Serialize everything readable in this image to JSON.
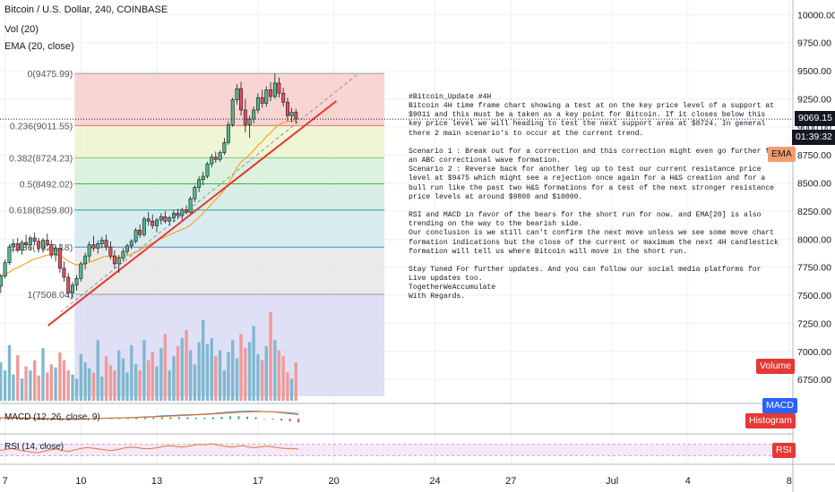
{
  "header": {
    "symbol": "Bitcoin / U.S. Dollar, 240, COINBASE",
    "vol": "Vol (20)",
    "ema": "EMA (20, close)"
  },
  "price_axis": {
    "ticks": [
      "10000.00",
      "9750.00",
      "9500.00",
      "9250.00",
      "9000.00",
      "8750.00",
      "8500.00",
      "8250.00",
      "8000.00",
      "7750.00",
      "7500.00",
      "7250.00",
      "7000.00",
      "6750.00"
    ],
    "current_price": "9069.15",
    "countdown": "01:39:32",
    "ema_tag": "EMA",
    "volume_tag": "Volume"
  },
  "macd_pane": {
    "label": "MACD (12, 26, close, 9)",
    "tag": "MACD",
    "histogram_tag": "Histogram",
    "zero": "0.00"
  },
  "rsi_pane": {
    "label": "RSI (14, close)",
    "tag": "RSI"
  },
  "time_axis": {
    "labels": [
      "7",
      "10",
      "13",
      "17",
      "20",
      "24",
      "27",
      "Jul",
      "4",
      "8"
    ]
  },
  "fibonacci": {
    "levels": [
      {
        "label": "0(9475.99)",
        "price": 9475.99,
        "fill": "#f4c7c3"
      },
      {
        "label": "0.236(9011.55)",
        "price": 9011.55,
        "fill": "#e9f3c8"
      },
      {
        "label": "0.382(8724.23)",
        "price": 8724.23,
        "fill": "#d1ecd4"
      },
      {
        "label": "0.5(8492.02)",
        "price": 8492.02,
        "fill": "#cce9de"
      },
      {
        "label": "0.618(8259.80)",
        "price": 8259.8,
        "fill": "#cce6ee"
      },
      {
        "label": "0.786(7929.18)",
        "price": 7929.18,
        "fill": "#e3e3e3"
      },
      {
        "label": "1(7508.04)",
        "price": 7508.04,
        "fill": "#d4d5f3"
      }
    ]
  },
  "note": {
    "text": "#Bitcoin_Update #4H\nBitcoin 4H time frame chart showing a test at on the key price level of a support at\n$9011 and this must be a taken as a key point for Bitcoin. If it closes below this\nkey price level we will heading to test the next support area at $8724. In general\nthere 2 main scenario's to occur at the current trend.\n\nScenario 1 : Break out for a correction and this correction might even go further for\nan ABC correctional wave formation.\nScenario 2 : Reverse back for another leg up to test our current resistance price\nlevel at $9475 which might see a rejection once again for a H&S creation and for a\nbull run like the past two H&S formations for a test of the next stronger resistance\nprice levels at around $9800 and $10000.\n\nRSI and MACD in favor of the bears for the short run for now. and EMA[20] is also\ntrending on the way to the bearish side.\nOur conclusion is we still can't confirm the next move unless we see some move chart\nformation indications but the close of the current or maximum the next 4H candlestick\nformation will tell us where Bitcoin will move in the short run.\n\nStay Tuned For further updates. And you can follow our social media platforms for\nLive updates too.\nTogetherWeAccumulate\nWith Regards."
  },
  "colors": {
    "up": "#53b987",
    "down": "#eb4d5c",
    "trendline": "#e53935",
    "ema": "#f5a623",
    "macd": "#2196f3",
    "signal": "#ff6d00",
    "rsi": "#e8743b",
    "rsi_band": "#e1bee7",
    "vol_up": "#7fb8cf",
    "vol_down": "#ef9a9a"
  },
  "chart_data": {
    "type": "candlestick",
    "title": "Bitcoin / U.S. Dollar, 240, COINBASE",
    "ylim": [
      6600,
      10130
    ],
    "x_start_day": 6.8,
    "x_end_day": 38.15,
    "candles": [
      {
        "t": 6.83,
        "o": 7580,
        "h": 7690,
        "l": 7520,
        "c": 7670
      },
      {
        "t": 7.0,
        "o": 7670,
        "h": 7820,
        "l": 7650,
        "c": 7790
      },
      {
        "t": 7.17,
        "o": 7790,
        "h": 7950,
        "l": 7770,
        "c": 7930
      },
      {
        "t": 7.33,
        "o": 7930,
        "h": 8000,
        "l": 7880,
        "c": 7960
      },
      {
        "t": 7.5,
        "o": 7960,
        "h": 8010,
        "l": 7880,
        "c": 7900
      },
      {
        "t": 7.67,
        "o": 7900,
        "h": 7990,
        "l": 7860,
        "c": 7970
      },
      {
        "t": 7.83,
        "o": 7970,
        "h": 8040,
        "l": 7920,
        "c": 7950
      },
      {
        "t": 8.0,
        "o": 7950,
        "h": 8030,
        "l": 7900,
        "c": 8010
      },
      {
        "t": 8.17,
        "o": 8010,
        "h": 8060,
        "l": 7950,
        "c": 7980
      },
      {
        "t": 8.33,
        "o": 7980,
        "h": 8010,
        "l": 7880,
        "c": 7920
      },
      {
        "t": 8.5,
        "o": 7920,
        "h": 8010,
        "l": 7880,
        "c": 7990
      },
      {
        "t": 8.67,
        "o": 7990,
        "h": 8050,
        "l": 7930,
        "c": 7950
      },
      {
        "t": 8.83,
        "o": 7950,
        "h": 7990,
        "l": 7830,
        "c": 7860
      },
      {
        "t": 9.0,
        "o": 7860,
        "h": 7950,
        "l": 7800,
        "c": 7920
      },
      {
        "t": 9.17,
        "o": 7920,
        "h": 7960,
        "l": 7700,
        "c": 7740
      },
      {
        "t": 9.33,
        "o": 7740,
        "h": 7800,
        "l": 7620,
        "c": 7660
      },
      {
        "t": 9.5,
        "o": 7660,
        "h": 7700,
        "l": 7480,
        "c": 7520
      },
      {
        "t": 9.67,
        "o": 7520,
        "h": 7620,
        "l": 7470,
        "c": 7590
      },
      {
        "t": 9.83,
        "o": 7590,
        "h": 7680,
        "l": 7540,
        "c": 7650
      },
      {
        "t": 10.0,
        "o": 7650,
        "h": 7800,
        "l": 7620,
        "c": 7780
      },
      {
        "t": 10.17,
        "o": 7780,
        "h": 7880,
        "l": 7730,
        "c": 7850
      },
      {
        "t": 10.33,
        "o": 7850,
        "h": 7980,
        "l": 7800,
        "c": 7950
      },
      {
        "t": 10.5,
        "o": 7950,
        "h": 8030,
        "l": 7890,
        "c": 7920
      },
      {
        "t": 10.67,
        "o": 7920,
        "h": 7990,
        "l": 7870,
        "c": 7960
      },
      {
        "t": 10.83,
        "o": 7960,
        "h": 8020,
        "l": 7920,
        "c": 7990
      },
      {
        "t": 11.0,
        "o": 7990,
        "h": 8040,
        "l": 7900,
        "c": 7930
      },
      {
        "t": 11.17,
        "o": 7930,
        "h": 7980,
        "l": 7820,
        "c": 7850
      },
      {
        "t": 11.33,
        "o": 7850,
        "h": 7900,
        "l": 7740,
        "c": 7780
      },
      {
        "t": 11.5,
        "o": 7780,
        "h": 7860,
        "l": 7700,
        "c": 7830
      },
      {
        "t": 11.67,
        "o": 7830,
        "h": 7920,
        "l": 7800,
        "c": 7890
      },
      {
        "t": 11.83,
        "o": 7890,
        "h": 7960,
        "l": 7860,
        "c": 7940
      },
      {
        "t": 12.0,
        "o": 7940,
        "h": 8000,
        "l": 7910,
        "c": 7980
      },
      {
        "t": 12.17,
        "o": 7980,
        "h": 8100,
        "l": 7960,
        "c": 8080
      },
      {
        "t": 12.33,
        "o": 8080,
        "h": 8130,
        "l": 8010,
        "c": 8040
      },
      {
        "t": 12.5,
        "o": 8040,
        "h": 8200,
        "l": 8020,
        "c": 8180
      },
      {
        "t": 12.67,
        "o": 8180,
        "h": 8240,
        "l": 8120,
        "c": 8160
      },
      {
        "t": 12.83,
        "o": 8160,
        "h": 8220,
        "l": 8090,
        "c": 8120
      },
      {
        "t": 13.0,
        "o": 8120,
        "h": 8190,
        "l": 8060,
        "c": 8170
      },
      {
        "t": 13.17,
        "o": 8170,
        "h": 8230,
        "l": 8130,
        "c": 8200
      },
      {
        "t": 13.33,
        "o": 8200,
        "h": 8250,
        "l": 8140,
        "c": 8160
      },
      {
        "t": 13.5,
        "o": 8160,
        "h": 8210,
        "l": 8120,
        "c": 8190
      },
      {
        "t": 13.67,
        "o": 8190,
        "h": 8260,
        "l": 8150,
        "c": 8230
      },
      {
        "t": 13.83,
        "o": 8230,
        "h": 8270,
        "l": 8180,
        "c": 8210
      },
      {
        "t": 14.0,
        "o": 8210,
        "h": 8280,
        "l": 8170,
        "c": 8260
      },
      {
        "t": 14.17,
        "o": 8260,
        "h": 8300,
        "l": 8220,
        "c": 8240
      },
      {
        "t": 14.33,
        "o": 8240,
        "h": 8380,
        "l": 8230,
        "c": 8360
      },
      {
        "t": 14.5,
        "o": 8360,
        "h": 8480,
        "l": 8330,
        "c": 8460
      },
      {
        "t": 14.67,
        "o": 8460,
        "h": 8560,
        "l": 8420,
        "c": 8530
      },
      {
        "t": 14.83,
        "o": 8530,
        "h": 8600,
        "l": 8480,
        "c": 8560
      },
      {
        "t": 15.0,
        "o": 8560,
        "h": 8690,
        "l": 8540,
        "c": 8670
      },
      {
        "t": 15.17,
        "o": 8670,
        "h": 8760,
        "l": 8640,
        "c": 8730
      },
      {
        "t": 15.33,
        "o": 8730,
        "h": 8780,
        "l": 8680,
        "c": 8710
      },
      {
        "t": 15.5,
        "o": 8710,
        "h": 8790,
        "l": 8690,
        "c": 8770
      },
      {
        "t": 15.67,
        "o": 8770,
        "h": 8900,
        "l": 8750,
        "c": 8860
      },
      {
        "t": 15.83,
        "o": 8860,
        "h": 9050,
        "l": 8840,
        "c": 9020
      },
      {
        "t": 16.0,
        "o": 9020,
        "h": 9260,
        "l": 9000,
        "c": 9240
      },
      {
        "t": 16.17,
        "o": 9240,
        "h": 9380,
        "l": 9200,
        "c": 9340
      },
      {
        "t": 16.33,
        "o": 9340,
        "h": 9400,
        "l": 9100,
        "c": 9150
      },
      {
        "t": 16.5,
        "o": 9150,
        "h": 9250,
        "l": 8950,
        "c": 9020
      },
      {
        "t": 16.67,
        "o": 9020,
        "h": 9100,
        "l": 8900,
        "c": 9070
      },
      {
        "t": 16.83,
        "o": 9070,
        "h": 9180,
        "l": 9030,
        "c": 9150
      },
      {
        "t": 17.0,
        "o": 9150,
        "h": 9300,
        "l": 9120,
        "c": 9260
      },
      {
        "t": 17.17,
        "o": 9260,
        "h": 9330,
        "l": 9170,
        "c": 9210
      },
      {
        "t": 17.33,
        "o": 9210,
        "h": 9360,
        "l": 9180,
        "c": 9330
      },
      {
        "t": 17.5,
        "o": 9330,
        "h": 9400,
        "l": 9230,
        "c": 9270
      },
      {
        "t": 17.67,
        "o": 9270,
        "h": 9476,
        "l": 9250,
        "c": 9390
      },
      {
        "t": 17.83,
        "o": 9390,
        "h": 9440,
        "l": 9260,
        "c": 9300
      },
      {
        "t": 18.0,
        "o": 9300,
        "h": 9350,
        "l": 9180,
        "c": 9220
      },
      {
        "t": 18.17,
        "o": 9220,
        "h": 9260,
        "l": 9050,
        "c": 9100
      },
      {
        "t": 18.33,
        "o": 9100,
        "h": 9170,
        "l": 9040,
        "c": 9130
      },
      {
        "t": 18.5,
        "o": 9130,
        "h": 9160,
        "l": 9030,
        "c": 9069
      }
    ],
    "volume_ylim": [
      0,
      100
    ],
    "macd": [
      0.4,
      0.4,
      0.3,
      0.2,
      0.1,
      0,
      -0.2,
      -0.3,
      -0.4,
      -0.3,
      -0.2,
      0,
      0.2,
      0.3,
      0.4,
      0.5,
      0.7,
      0.9,
      1.1,
      1.4,
      1.6,
      1.8,
      2,
      2.1,
      2.3,
      2.6,
      3,
      3.4,
      3.7,
      3.8,
      3.8,
      3.6,
      3.4,
      3,
      2.5,
      2
    ],
    "signal": [
      0.5,
      0.5,
      0.4,
      0.4,
      0.3,
      0.2,
      0.1,
      0,
      -0.1,
      -0.1,
      -0.1,
      0,
      0.1,
      0.2,
      0.3,
      0.4,
      0.5,
      0.7,
      0.9,
      1.1,
      1.3,
      1.5,
      1.7,
      1.9,
      2.1,
      2.3,
      2.6,
      2.9,
      3.2,
      3.4,
      3.5,
      3.6,
      3.5,
      3.3,
      3,
      2.7
    ],
    "rsi": [
      48,
      52,
      55,
      50,
      46,
      43,
      40,
      45,
      50,
      53,
      48,
      45,
      50,
      55,
      58,
      56,
      53,
      50,
      48,
      52,
      57,
      60,
      58,
      55,
      54,
      57,
      61,
      65,
      63,
      60,
      62,
      66,
      70,
      68,
      72,
      68,
      63,
      60,
      62,
      65,
      60,
      58,
      61,
      63,
      60,
      57,
      55,
      55,
      53
    ]
  }
}
